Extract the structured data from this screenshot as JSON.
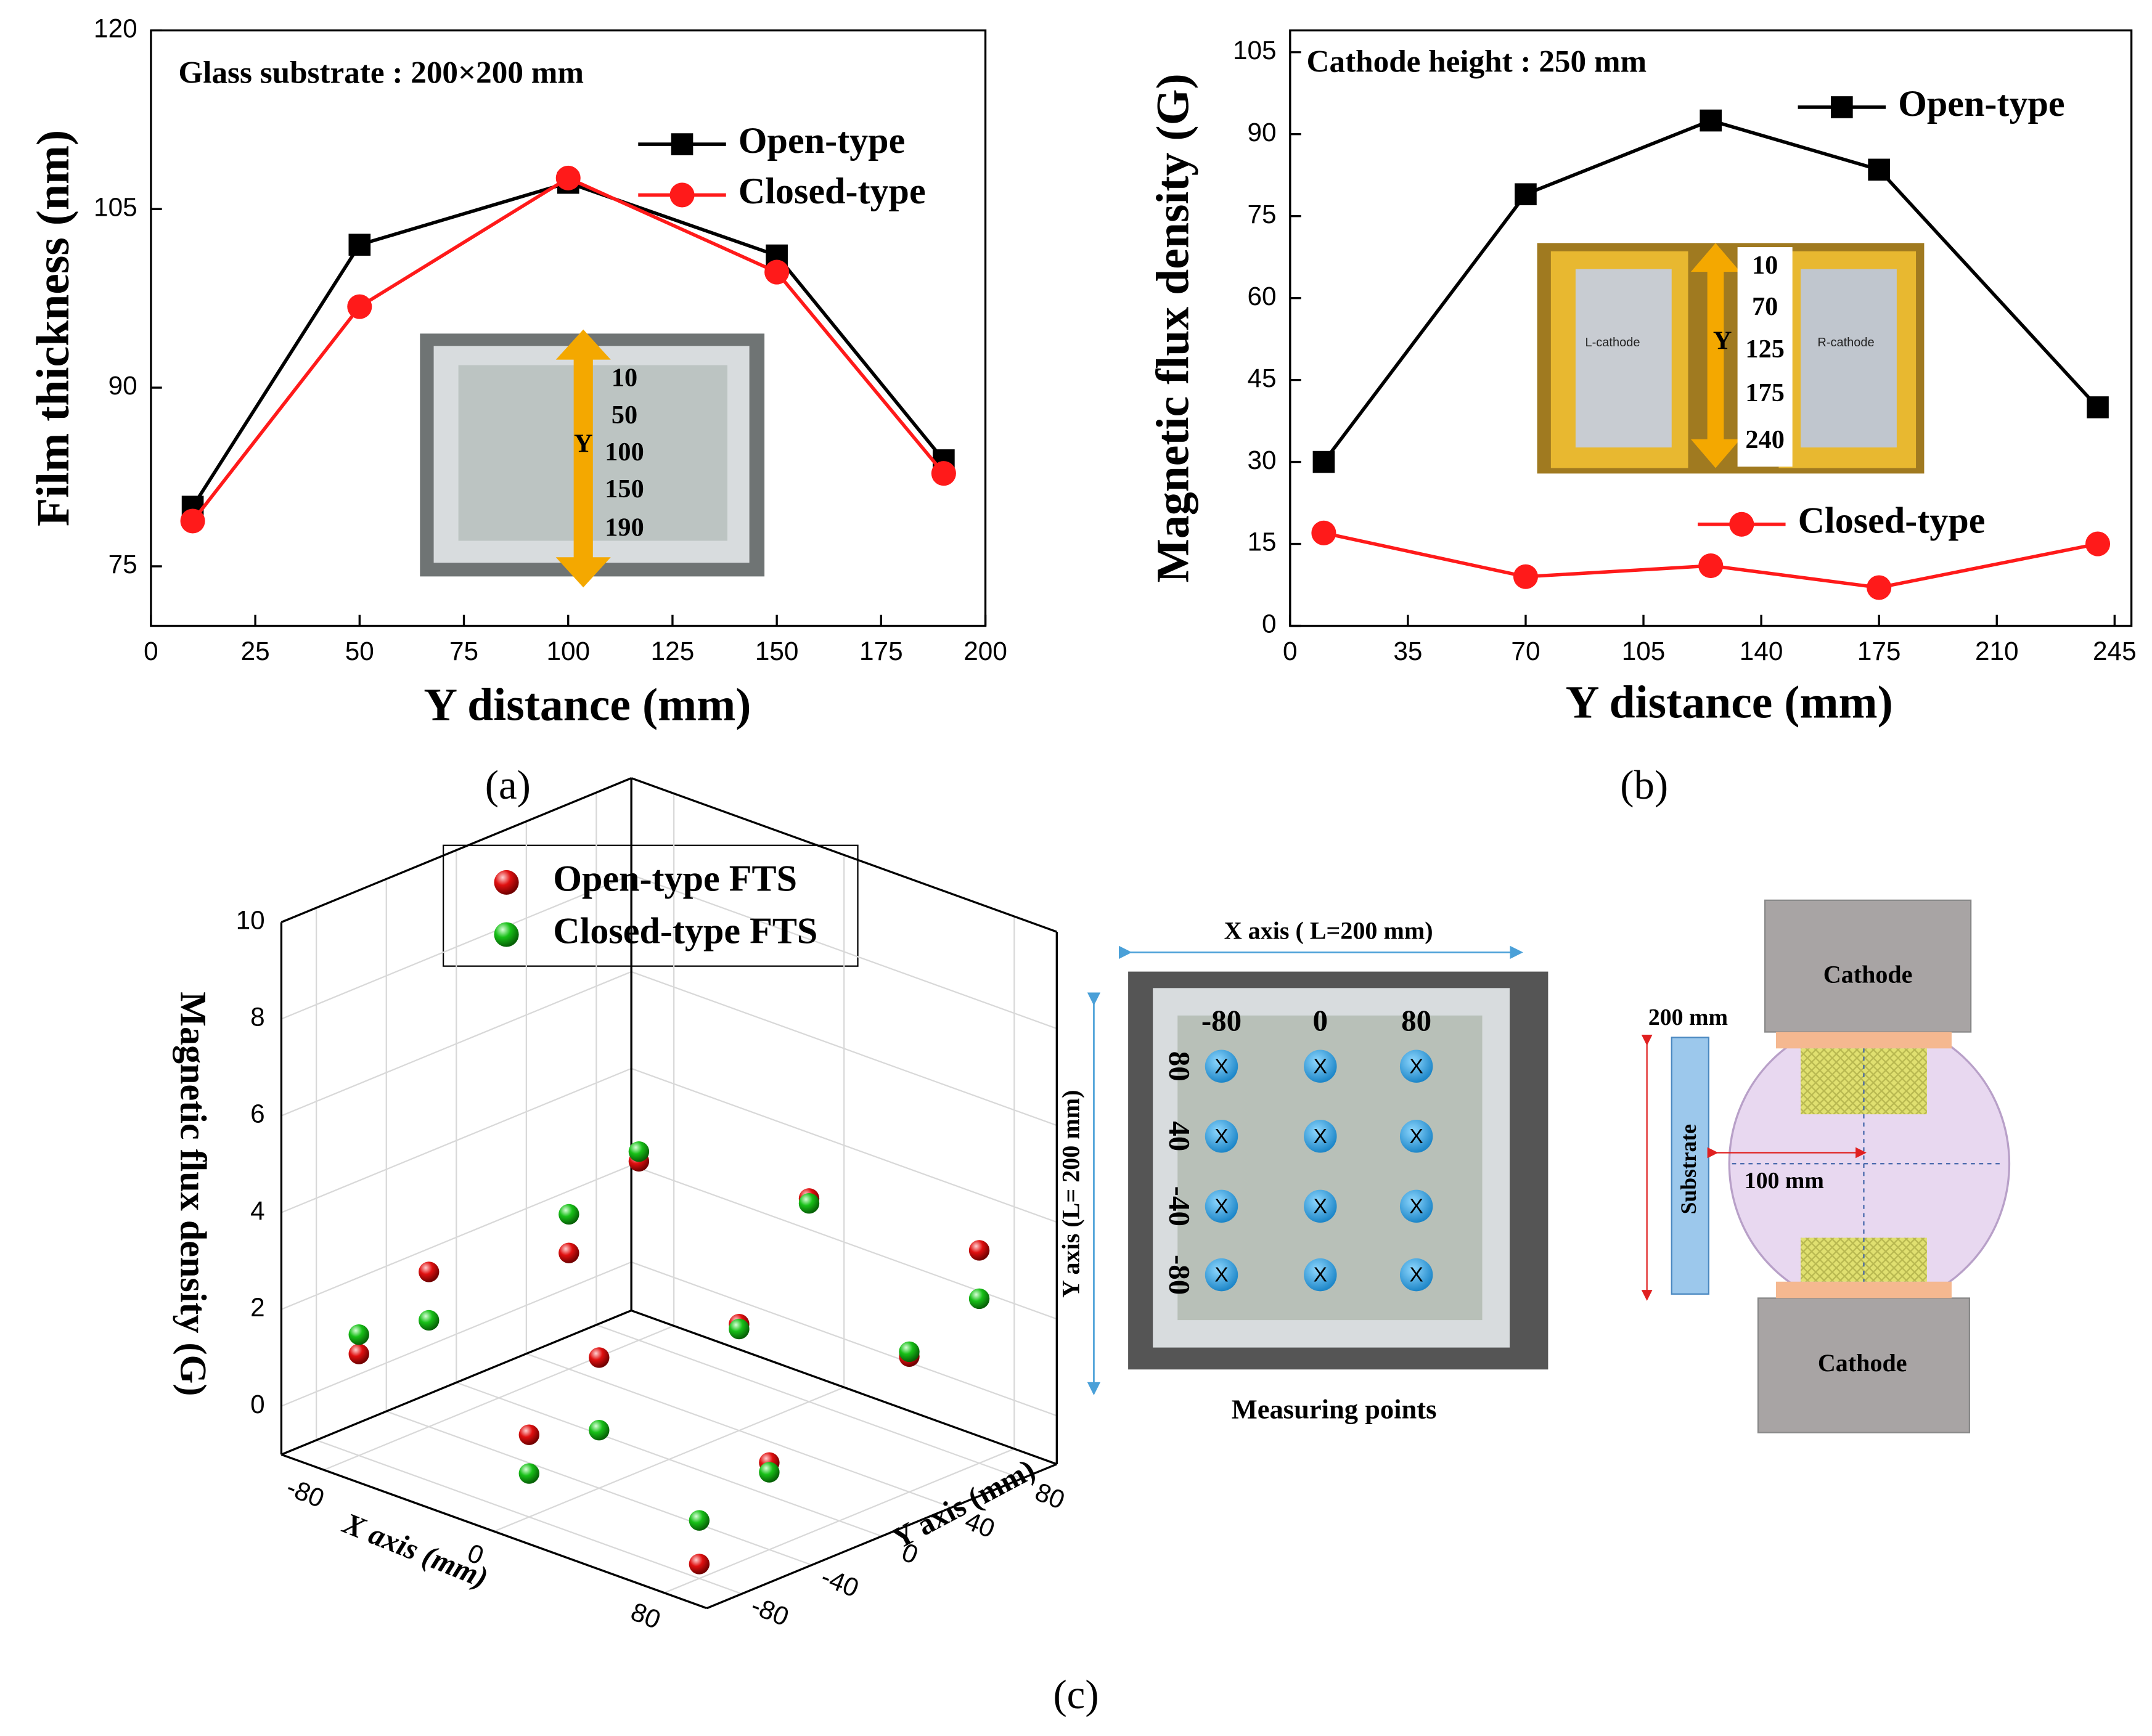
{
  "chart_data": [
    {
      "type": "line",
      "annotation": "Glass substrate : 200×200 mm",
      "xlabel": "Y distance (mm)",
      "ylabel": "Film thickness (nm)",
      "caption": "(a)",
      "x": [
        10,
        50,
        100,
        150,
        190
      ],
      "series": [
        {
          "name": "Open-type",
          "color": "#000000",
          "marker": "square",
          "values": [
            80,
            102,
            107.2,
            101.1,
            83.9
          ]
        },
        {
          "name": "Closed-type",
          "color": "#ff1a1a",
          "marker": "circle",
          "values": [
            78.8,
            96.8,
            107.6,
            99.7,
            82.8
          ]
        }
      ],
      "xlim": [
        0,
        200
      ],
      "xticks": [
        0,
        25,
        50,
        75,
        100,
        125,
        150,
        175,
        200
      ],
      "ylim": [
        70,
        120
      ],
      "yticks": [
        75,
        90,
        105,
        120
      ],
      "inset_axis": "Y",
      "inset_labels": [
        "10",
        "50",
        "100",
        "150",
        "190"
      ]
    },
    {
      "type": "line",
      "annotation": "Cathode height : 250 mm",
      "xlabel": "Y distance (mm)",
      "ylabel": "Magnetic flux density (G)",
      "caption": "(b)",
      "x": [
        10,
        70,
        125,
        175,
        240
      ],
      "series": [
        {
          "name": "Open-type",
          "color": "#000000",
          "marker": "square",
          "values": [
            30,
            79,
            92.5,
            83.5,
            40
          ]
        },
        {
          "name": "Closed-type",
          "color": "#ff1a1a",
          "marker": "circle",
          "values": [
            17,
            9,
            11,
            7,
            15
          ]
        }
      ],
      "xlim": [
        0,
        250
      ],
      "xticks": [
        0,
        35,
        70,
        105,
        140,
        175,
        210,
        245
      ],
      "ylim": [
        0,
        109
      ],
      "yticks": [
        0,
        15,
        30,
        45,
        60,
        75,
        90,
        105
      ],
      "inset_axis": "Y",
      "inset_labels": [
        "10",
        "70",
        "125",
        "175",
        "240"
      ],
      "inset_cathodes": [
        "L-cathode",
        "R-cathode"
      ]
    },
    {
      "type": "scatter3d",
      "xlabel": "X axis (mm)",
      "ylabel": "Y axis (mm)",
      "zlabel": "Magnetic flux density (G)",
      "caption": "(c)",
      "x": [
        -80,
        -80,
        -80,
        -80,
        0,
        0,
        0,
        0,
        80,
        80,
        80,
        80
      ],
      "y": [
        -80,
        -40,
        40,
        80,
        -80,
        -40,
        40,
        80,
        -80,
        -40,
        40,
        80
      ],
      "series": [
        {
          "name": "Open-type FTS",
          "color": "#e01010",
          "values": [
            0.9,
            2.0,
            1.2,
            2.5,
            0.5,
            1.5,
            1.0,
            3.0,
            -0.9,
            0.6,
            1.6,
            3.2
          ]
        },
        {
          "name": "Closed-type FTS",
          "color": "#18c018",
          "values": [
            1.3,
            1.0,
            2.0,
            2.7,
            -0.3,
            0.0,
            0.9,
            2.9,
            0.0,
            0.4,
            1.7,
            2.2
          ]
        }
      ],
      "xlim": [
        -100,
        100
      ],
      "xticks": [
        -80,
        0,
        80
      ],
      "ylim": [
        -100,
        100
      ],
      "yticks": [
        -80,
        -40,
        0,
        40,
        80
      ],
      "zlim": [
        -1,
        10
      ],
      "zticks": [
        0,
        2,
        4,
        6,
        8,
        10
      ]
    }
  ],
  "measuring_points": {
    "title": "Measuring points",
    "x_axis": "X axis ( L=200 mm)",
    "y_axis": "Y axis (L= 200 mm)",
    "columns": [
      "-80",
      "0",
      "80"
    ],
    "rows": [
      "80",
      "40",
      "-40",
      "-80"
    ],
    "marker": "X"
  },
  "diagram": {
    "cathode_top": "Cathode",
    "cathode_bottom": "Cathode",
    "substrate": "Substrate",
    "length": "200 mm",
    "half": "100 mm"
  }
}
